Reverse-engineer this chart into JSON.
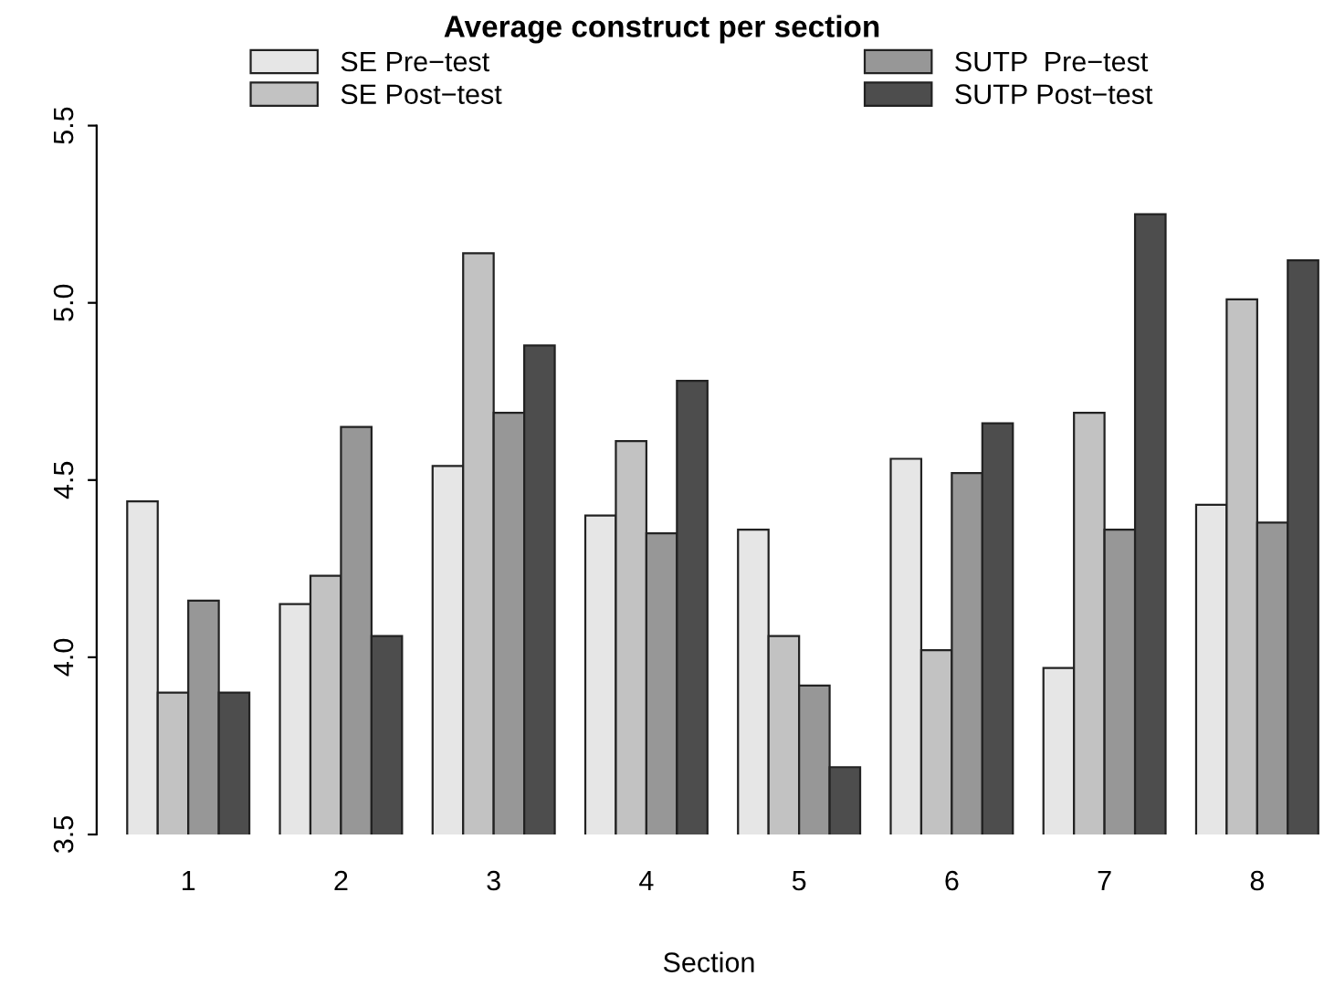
{
  "chart_data": {
    "type": "bar",
    "title": "Average construct per section",
    "xlabel": "Section",
    "categories": [
      "1",
      "2",
      "3",
      "4",
      "5",
      "6",
      "7",
      "8"
    ],
    "series": [
      {
        "name": "SE Pre−test",
        "color": "#e6e6e6",
        "values": [
          4.44,
          4.15,
          4.54,
          4.4,
          4.36,
          4.56,
          3.97,
          4.43
        ]
      },
      {
        "name": "SE Post−test",
        "color": "#c2c2c2",
        "values": [
          3.9,
          4.23,
          5.14,
          4.61,
          4.06,
          4.02,
          4.69,
          5.01
        ]
      },
      {
        "name": "SUTP  Pre−test",
        "color": "#979797",
        "values": [
          4.16,
          4.65,
          4.69,
          4.35,
          3.92,
          4.52,
          4.36,
          4.38
        ]
      },
      {
        "name": "SUTP Post−test",
        "color": "#4d4d4d",
        "values": [
          3.9,
          4.06,
          4.88,
          4.78,
          3.69,
          4.66,
          5.25,
          5.12
        ]
      }
    ],
    "ylim": [
      3.5,
      5.5
    ],
    "yticks": [
      3.5,
      {
        "value": 4.0,
        "label": "4.0"
      },
      4.5,
      {
        "value": 5.0,
        "label": "5.0"
      },
      5.5
    ],
    "grid": false,
    "legend": "top"
  }
}
